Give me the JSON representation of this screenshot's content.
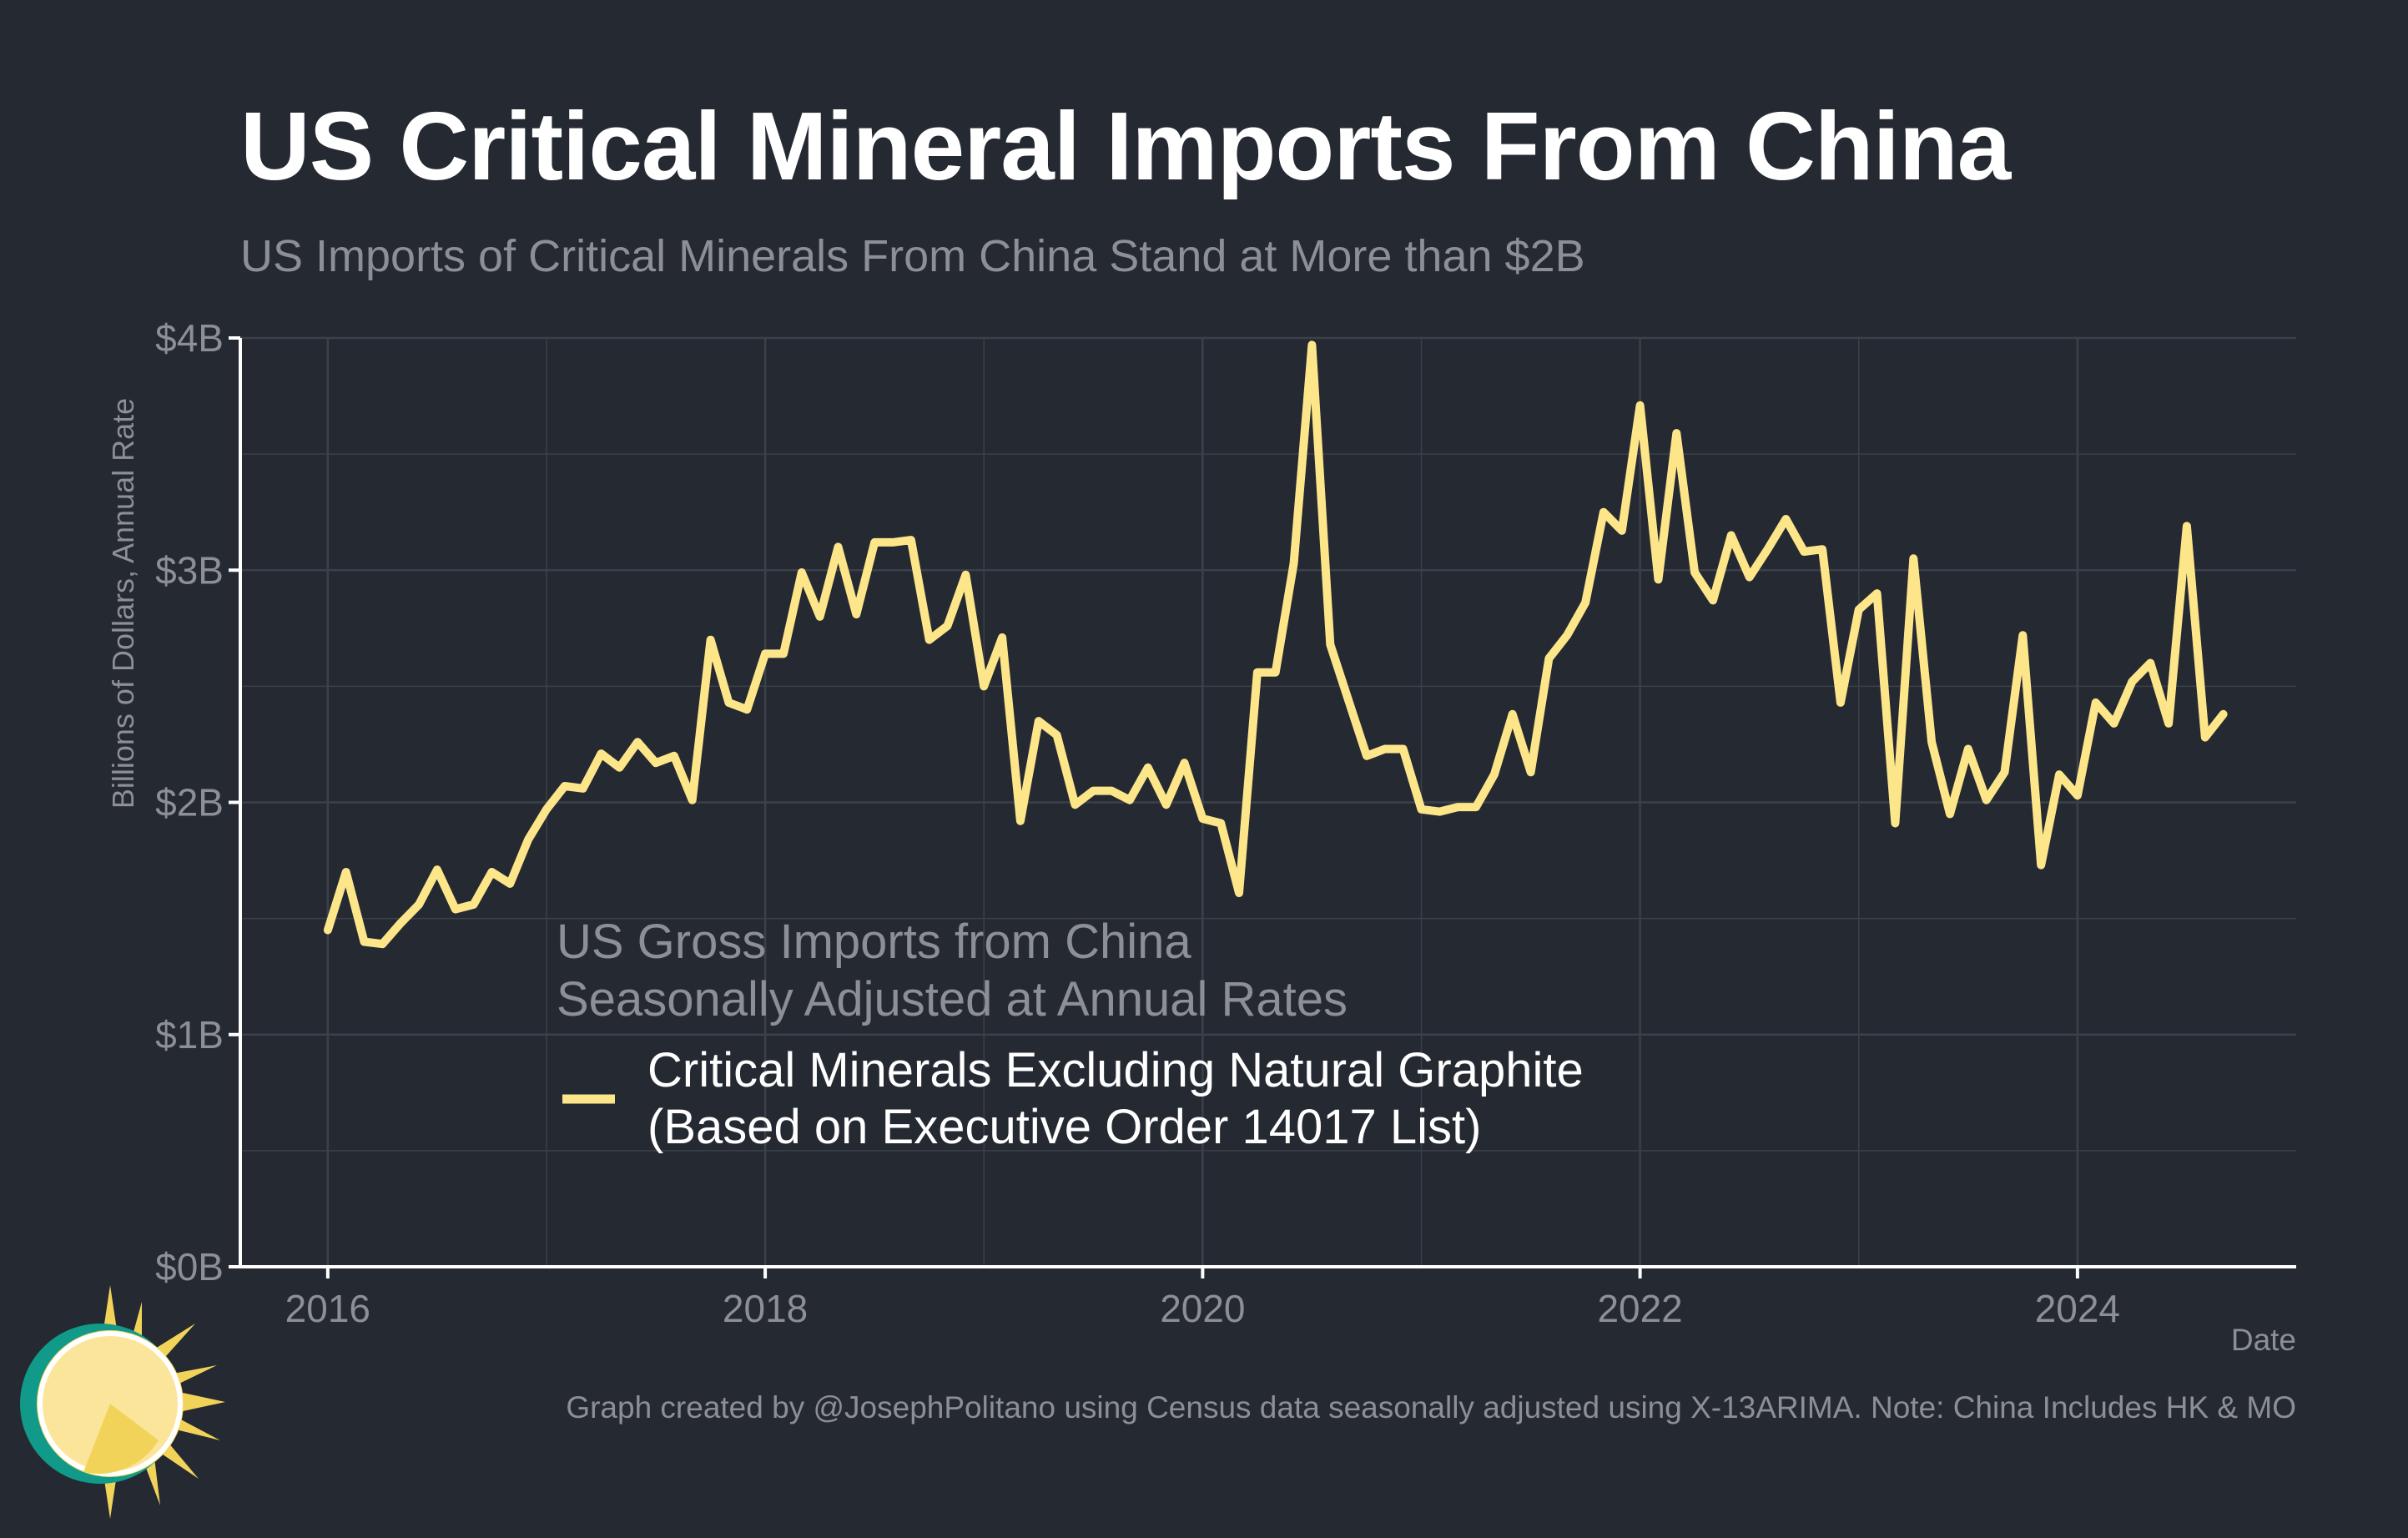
{
  "header": {
    "title": "US Critical Mineral Imports From China",
    "subtitle": "US Imports of Critical Minerals From China Stand at More than $2B"
  },
  "footer": {
    "credit": "Graph created by @JosephPolitano using Census data seasonally adjusted using X-13ARIMA. Note: China Includes HK & MO"
  },
  "logo": {
    "icon": "sun-logo-icon"
  },
  "colors": {
    "background": "#252932",
    "line": "#FDE68A",
    "grid": "#3c4049",
    "axis": "#ffffff",
    "muted_text": "#8c8f95"
  },
  "chart_data": {
    "type": "line",
    "title": "US Critical Mineral Imports From China",
    "subtitle": "US Imports of Critical Minerals From China Stand at More than $2B",
    "xlabel": "Date",
    "ylabel": "Billions of Dollars, Annual Rate",
    "xlim": [
      2015.6,
      2025.0
    ],
    "ylim": [
      0,
      4
    ],
    "x_ticks": [
      2016,
      2018,
      2020,
      2022,
      2024
    ],
    "x_tick_labels": [
      "2016",
      "2018",
      "2020",
      "2022",
      "2024"
    ],
    "y_ticks": [
      0,
      1,
      2,
      3,
      4
    ],
    "y_tick_labels": [
      "$0B",
      "$1B",
      "$2B",
      "$3B",
      "$4B"
    ],
    "grid": true,
    "legend": {
      "placement": "center-left",
      "title_lines": [
        "US Gross Imports from China",
        "Seasonally Adjusted at Annual Rates"
      ],
      "entries": [
        {
          "label_lines": [
            "Critical Minerals Excluding Natural Graphite",
            "(Based on Executive Order 14017 List)"
          ]
        }
      ]
    },
    "series": [
      {
        "name": "Critical Minerals Excluding Natural Graphite (Based on Executive Order 14017 List)",
        "color": "#FDE68A",
        "start": "2016-01",
        "frequency": "monthly",
        "values": [
          1.45,
          1.7,
          1.4,
          1.39,
          1.48,
          1.56,
          1.71,
          1.54,
          1.56,
          1.7,
          1.65,
          1.84,
          1.97,
          2.07,
          2.06,
          2.21,
          2.15,
          2.26,
          2.17,
          2.2,
          2.01,
          2.7,
          2.43,
          2.4,
          2.64,
          2.64,
          2.99,
          2.8,
          3.1,
          2.81,
          3.12,
          3.12,
          3.13,
          2.7,
          2.76,
          2.98,
          2.5,
          2.71,
          1.92,
          2.35,
          2.29,
          1.99,
          2.05,
          2.05,
          2.01,
          2.15,
          1.99,
          2.17,
          1.93,
          1.91,
          1.61,
          2.56,
          2.56,
          3.03,
          3.97,
          2.68,
          2.44,
          2.2,
          2.23,
          2.23,
          1.97,
          1.96,
          1.98,
          1.98,
          2.12,
          2.38,
          2.13,
          2.62,
          2.72,
          2.86,
          3.25,
          3.17,
          3.71,
          2.96,
          3.59,
          2.99,
          2.87,
          3.15,
          2.97,
          3.09,
          3.22,
          3.08,
          3.09,
          2.43,
          2.83,
          2.9,
          1.91,
          3.05,
          2.26,
          1.95,
          2.23,
          2.01,
          2.13,
          2.72,
          1.73,
          2.12,
          2.03,
          2.43,
          2.34,
          2.52,
          2.6,
          2.34,
          3.19,
          2.28,
          2.38
        ]
      }
    ]
  }
}
